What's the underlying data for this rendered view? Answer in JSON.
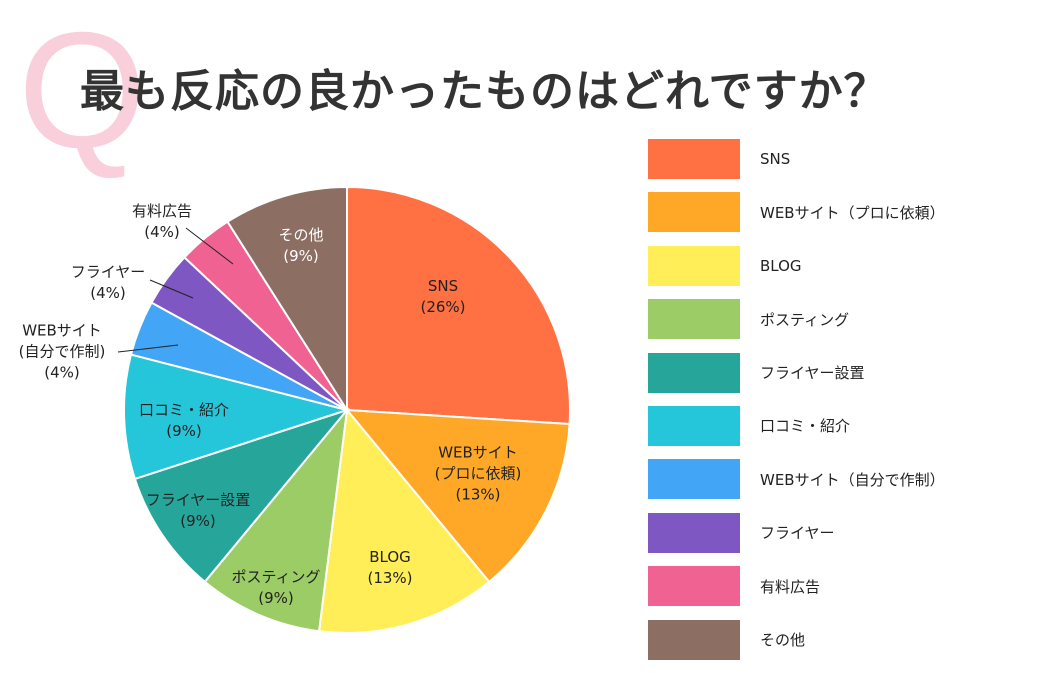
{
  "title_mark": "Q",
  "title": "最も反応の良かったものはどれですか？",
  "chart_data": {
    "type": "pie",
    "unit": "%",
    "start": "top, clockwise",
    "legend_position": "right",
    "slices": [
      {
        "name": "SNS",
        "label": "SNS",
        "value": 26,
        "pct_label": "(26%)",
        "color": "#FF7043"
      },
      {
        "name": "WEBサイト（プロに依頼）",
        "label": "WEBサイト\n(プロに依頼)",
        "value": 13,
        "pct_label": "(13%)",
        "color": "#FFA726"
      },
      {
        "name": "BLOG",
        "label": "BLOG",
        "value": 13,
        "pct_label": "(13%)",
        "color": "#FFEE58"
      },
      {
        "name": "ポスティング",
        "label": "ポスティング",
        "value": 9,
        "pct_label": "(9%)",
        "color": "#9CCC65"
      },
      {
        "name": "フライヤー設置",
        "label": "フライヤー設置",
        "value": 9,
        "pct_label": "(9%)",
        "color": "#26A69A"
      },
      {
        "name": "口コミ・紹介",
        "label": "口コミ・紹介",
        "value": 9,
        "pct_label": "(9%)",
        "color": "#26C6DA"
      },
      {
        "name": "WEBサイト（自分で作制）",
        "label": "WEBサイト\n(自分で作制)",
        "value": 4,
        "pct_label": "(4%)",
        "color": "#42A5F5"
      },
      {
        "name": "フライヤー",
        "label": "フライヤー",
        "value": 4,
        "pct_label": "(4%)",
        "color": "#7E57C2"
      },
      {
        "name": "有料広告",
        "label": "有料広告",
        "value": 4,
        "pct_label": "(4%)",
        "color": "#F06292"
      },
      {
        "name": "その他",
        "label": "その他",
        "value": 9,
        "pct_label": "(9%)",
        "color": "#8D6E63"
      }
    ]
  }
}
